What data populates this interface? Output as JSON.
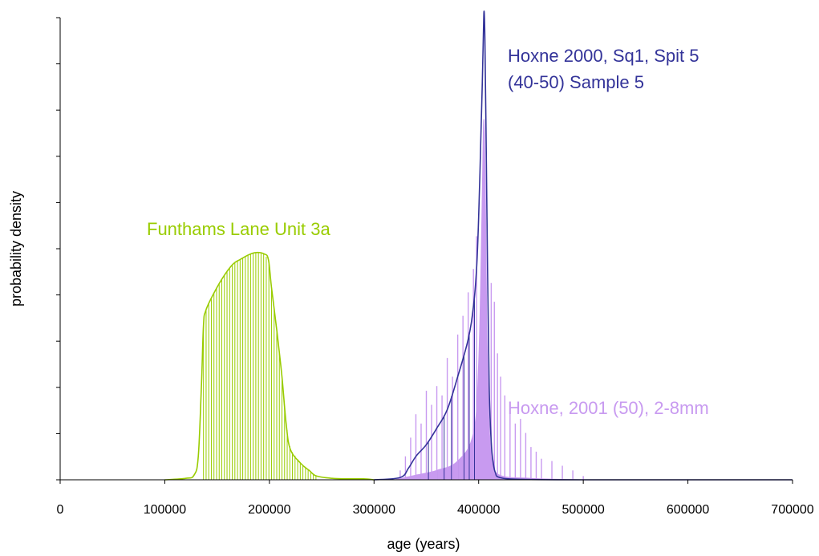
{
  "chart_data": {
    "type": "area",
    "xlabel": "age (years)",
    "ylabel": "probability density",
    "xlim": [
      0,
      700000
    ],
    "ylim": [
      0,
      1.0
    ],
    "x_ticks": [
      0,
      100000,
      200000,
      300000,
      400000,
      500000,
      600000,
      700000
    ],
    "x_tick_labels": [
      "0",
      "100000",
      "200000",
      "300000",
      "400000",
      "500000",
      "600000",
      "700000"
    ],
    "y_tick_count": 11,
    "grid": false,
    "legend": "none",
    "series": [
      {
        "name": "Funthams Lane Unit 3a",
        "color": "#99cc00",
        "style": "line-with-drop-lines",
        "points": [
          [
            100000,
            0.0
          ],
          [
            120000,
            0.003
          ],
          [
            128000,
            0.01
          ],
          [
            132000,
            0.05
          ],
          [
            135000,
            0.2
          ],
          [
            137000,
            0.33
          ],
          [
            139000,
            0.36
          ],
          [
            145000,
            0.39
          ],
          [
            155000,
            0.43
          ],
          [
            165000,
            0.46
          ],
          [
            172000,
            0.47
          ],
          [
            180000,
            0.48
          ],
          [
            187000,
            0.485
          ],
          [
            195000,
            0.482
          ],
          [
            199000,
            0.47
          ],
          [
            202000,
            0.41
          ],
          [
            207000,
            0.32
          ],
          [
            212000,
            0.22
          ],
          [
            216000,
            0.12
          ],
          [
            220000,
            0.065
          ],
          [
            230000,
            0.035
          ],
          [
            238000,
            0.02
          ],
          [
            245000,
            0.008
          ],
          [
            260000,
            0.003
          ],
          [
            275000,
            0.002
          ],
          [
            290000,
            0.002
          ],
          [
            300000,
            0.0
          ]
        ]
      },
      {
        "name": "Hoxne 2000, Sq1, Spit 5 (40-50) Sample 5",
        "label_lines": [
          "Hoxne 2000, Sq1, Spit 5",
          "(40-50) Sample 5"
        ],
        "color": "#333399",
        "style": "line",
        "points": [
          [
            300000,
            0.0
          ],
          [
            325000,
            0.005
          ],
          [
            333000,
            0.025
          ],
          [
            340000,
            0.05
          ],
          [
            350000,
            0.075
          ],
          [
            360000,
            0.11
          ],
          [
            370000,
            0.15
          ],
          [
            380000,
            0.22
          ],
          [
            390000,
            0.3
          ],
          [
            395000,
            0.37
          ],
          [
            398000,
            0.45
          ],
          [
            400000,
            0.56
          ],
          [
            402000,
            0.72
          ],
          [
            403500,
            0.85
          ],
          [
            404500,
            0.95
          ],
          [
            405200,
            1.0
          ],
          [
            406000,
            0.94
          ],
          [
            407000,
            0.76
          ],
          [
            408500,
            0.45
          ],
          [
            410000,
            0.2
          ],
          [
            412000,
            0.08
          ],
          [
            414000,
            0.035
          ],
          [
            416000,
            0.015
          ],
          [
            420000,
            0.005
          ],
          [
            440000,
            0.001
          ],
          [
            500000,
            0.0
          ],
          [
            700000,
            0.0
          ]
        ]
      },
      {
        "name": "Hoxne, 2001 (50), 2-8mm",
        "color": "#c89af0",
        "style": "filled-peak-with-spikes",
        "points": [
          [
            320000,
            0.0
          ],
          [
            330000,
            0.005
          ],
          [
            340000,
            0.01
          ],
          [
            360000,
            0.02
          ],
          [
            380000,
            0.04
          ],
          [
            395000,
            0.1
          ],
          [
            400000,
            0.25
          ],
          [
            403000,
            0.55
          ],
          [
            404500,
            0.75
          ],
          [
            405500,
            0.74
          ],
          [
            406500,
            0.6
          ],
          [
            408000,
            0.3
          ],
          [
            410000,
            0.12
          ],
          [
            413000,
            0.04
          ],
          [
            420000,
            0.01
          ],
          [
            450000,
            0.003
          ],
          [
            500000,
            0.0
          ]
        ],
        "spikes": [
          [
            325000,
            0.02
          ],
          [
            330000,
            0.05
          ],
          [
            335000,
            0.09
          ],
          [
            340000,
            0.14
          ],
          [
            345000,
            0.12
          ],
          [
            350000,
            0.19
          ],
          [
            355000,
            0.16
          ],
          [
            360000,
            0.2
          ],
          [
            365000,
            0.18
          ],
          [
            370000,
            0.26
          ],
          [
            375000,
            0.22
          ],
          [
            380000,
            0.31
          ],
          [
            385000,
            0.35
          ],
          [
            390000,
            0.4
          ],
          [
            395000,
            0.45
          ],
          [
            398000,
            0.52
          ],
          [
            412000,
            0.42
          ],
          [
            415000,
            0.38
          ],
          [
            418000,
            0.27
          ],
          [
            421000,
            0.22
          ],
          [
            425000,
            0.18
          ],
          [
            430000,
            0.15
          ],
          [
            435000,
            0.12
          ],
          [
            440000,
            0.13
          ],
          [
            445000,
            0.1
          ],
          [
            450000,
            0.07
          ],
          [
            455000,
            0.06
          ],
          [
            460000,
            0.045
          ],
          [
            470000,
            0.04
          ],
          [
            480000,
            0.03
          ],
          [
            490000,
            0.02
          ],
          [
            500000,
            0.008
          ]
        ]
      }
    ]
  }
}
